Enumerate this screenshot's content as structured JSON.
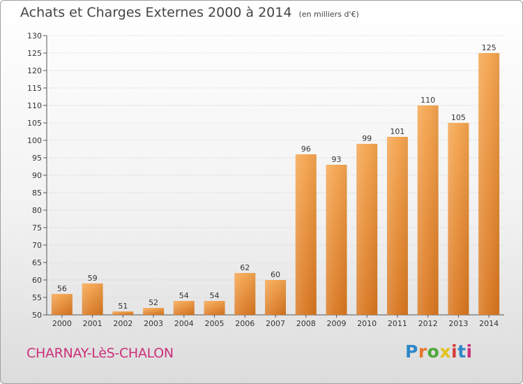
{
  "title": "Achats et Charges Externes 2000 à 2014",
  "unit_note": "(en milliers d'€)",
  "city": "CHARNAY-LèS-CHALON",
  "logo": {
    "text": "Proxiti",
    "letter_colors": [
      "#2d87c8",
      "#e8762c",
      "#4da83b",
      "#e2c21e",
      "#d63b3b",
      "#2d87c8",
      "#cc2f7a"
    ]
  },
  "colors": {
    "bar_light": "#f5a54f",
    "bar_dark": "#d8761f",
    "title": "#444444",
    "city": "#cc2f7a"
  },
  "chart_data": {
    "type": "bar",
    "categories": [
      "2000",
      "2001",
      "2002",
      "2003",
      "2004",
      "2005",
      "2006",
      "2007",
      "2008",
      "2009",
      "2010",
      "2011",
      "2012",
      "2013",
      "2014"
    ],
    "values": [
      56,
      59,
      51,
      52,
      54,
      54,
      62,
      60,
      96,
      93,
      99,
      101,
      110,
      105,
      125
    ],
    "ylim": [
      50,
      130
    ],
    "yticks": [
      50,
      55,
      60,
      65,
      70,
      75,
      80,
      85,
      90,
      95,
      100,
      105,
      110,
      115,
      120,
      125,
      130
    ],
    "grid": true,
    "legend": "none"
  }
}
